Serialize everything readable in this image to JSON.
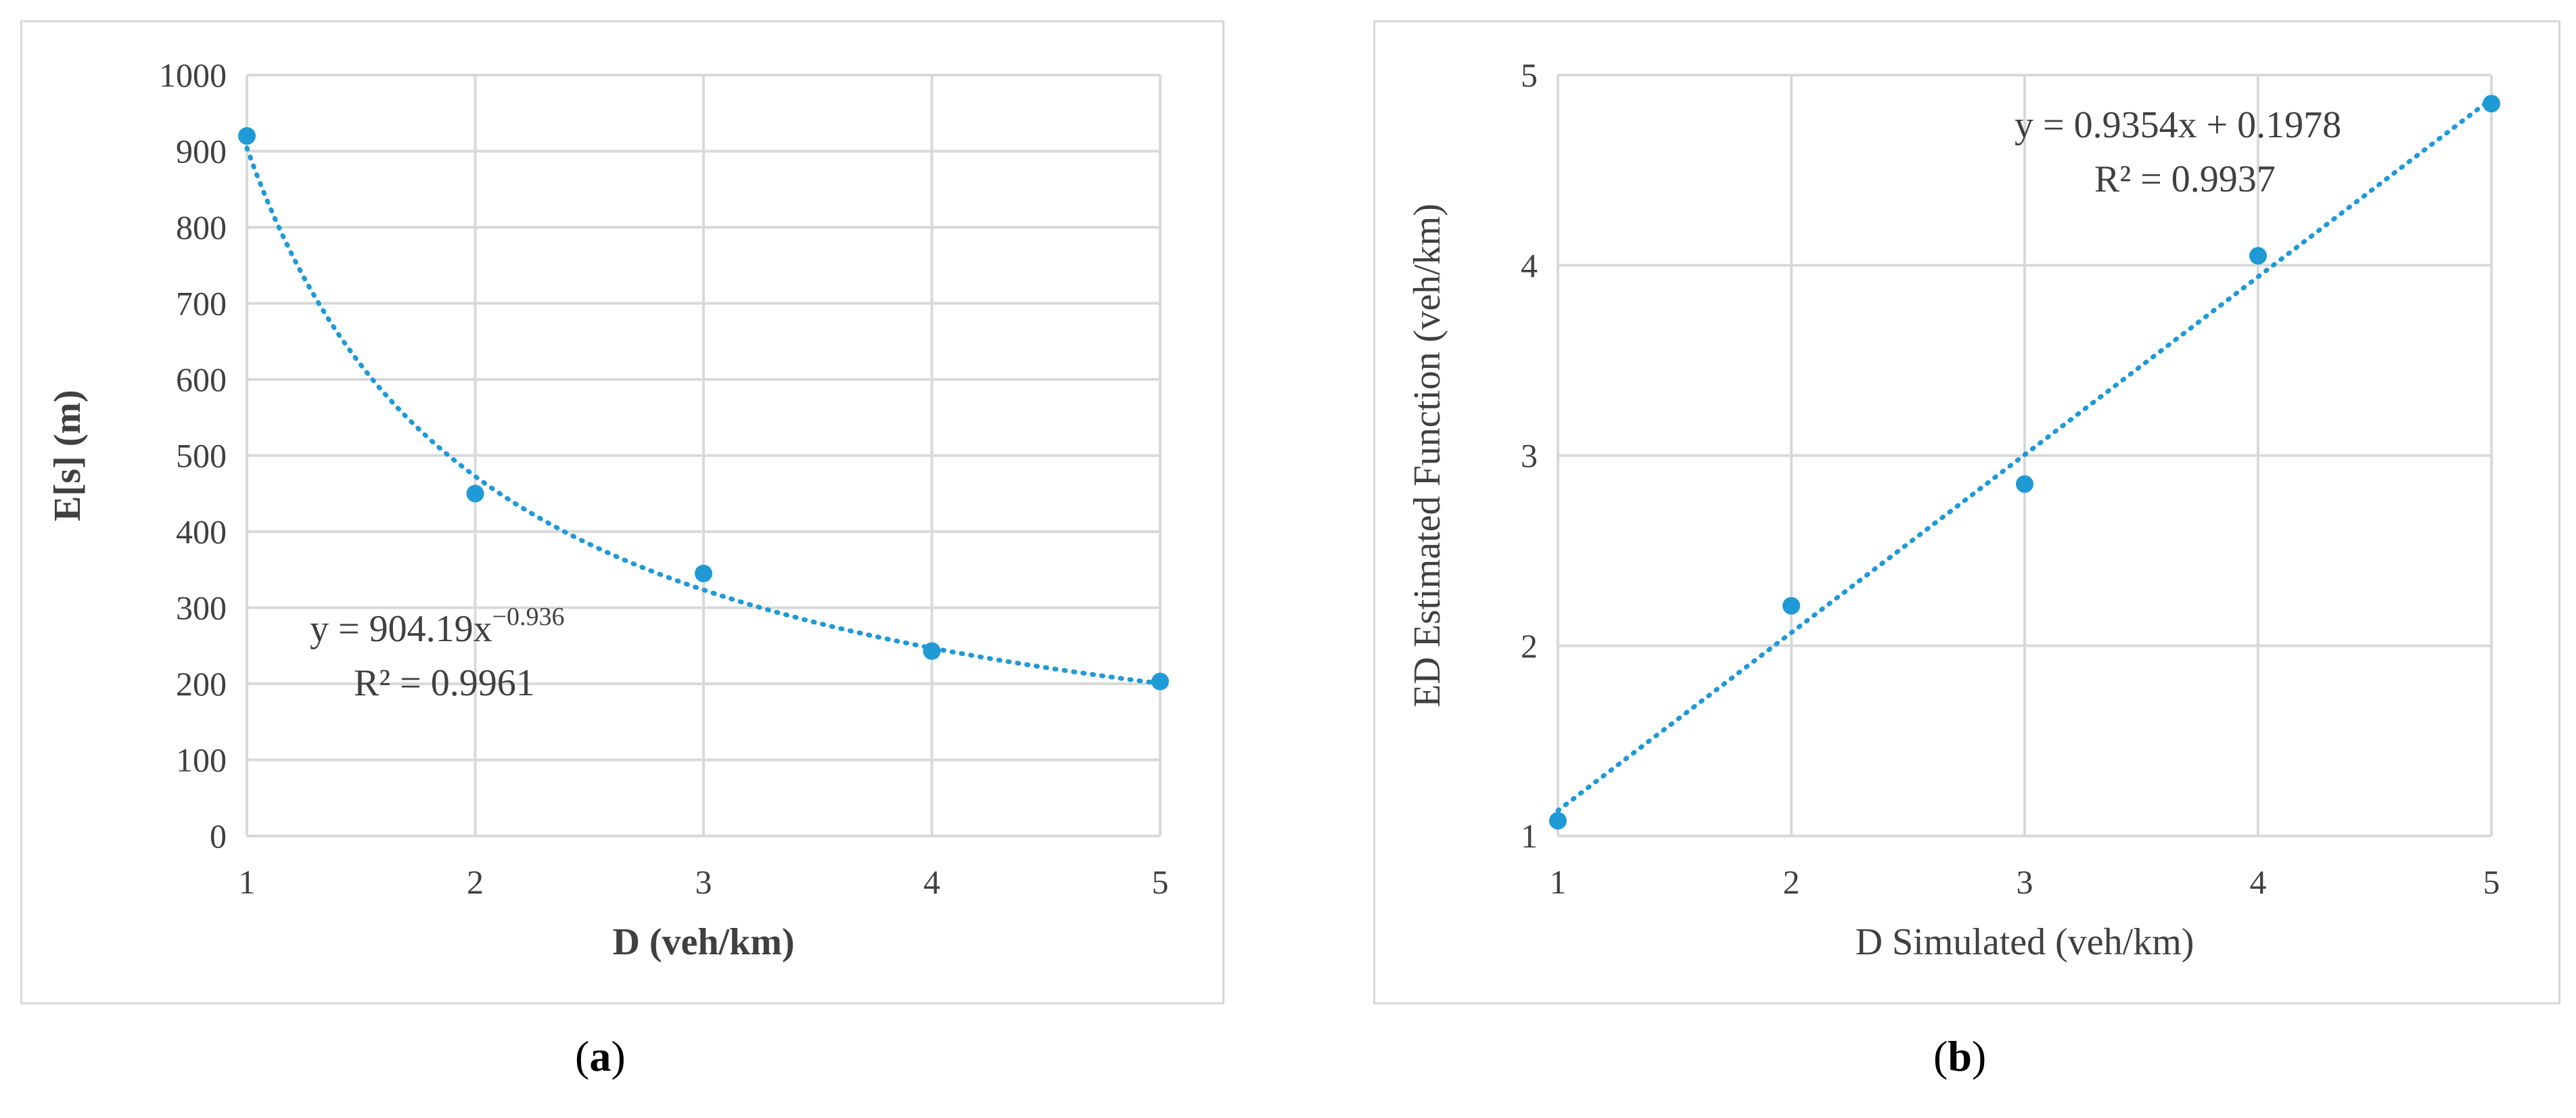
{
  "captions": {
    "a": {
      "open": "(",
      "letter": "a",
      "close": ")"
    },
    "b": {
      "open": "(",
      "letter": "b",
      "close": ")"
    }
  },
  "chart_data": [
    {
      "type": "scatter",
      "title": "",
      "xlabel": "D (veh/km)",
      "ylabel": "E[s] (m)",
      "xlim": [
        1,
        5
      ],
      "ylim": [
        0,
        1000
      ],
      "xticks": [
        1,
        2,
        3,
        4,
        5
      ],
      "yticks": [
        0,
        100,
        200,
        300,
        400,
        500,
        600,
        700,
        800,
        900,
        1000
      ],
      "grid": true,
      "points": [
        {
          "x": 1,
          "y": 920
        },
        {
          "x": 2,
          "y": 450
        },
        {
          "x": 3,
          "y": 345
        },
        {
          "x": 4,
          "y": 243
        },
        {
          "x": 5,
          "y": 203
        }
      ],
      "trendline": {
        "kind": "power",
        "a": 904.19,
        "b": -0.936,
        "style": "dotted"
      },
      "equation": {
        "base": "y = 904.19x",
        "exponent": "−0.936",
        "r2": "R² = 0.9961"
      },
      "color": "#1f9ad6"
    },
    {
      "type": "scatter",
      "title": "",
      "xlabel": "D Simulated (veh/km)",
      "ylabel": "ED Estimated Function (veh/km)",
      "xlim": [
        1,
        5
      ],
      "ylim": [
        1,
        5
      ],
      "xticks": [
        1,
        2,
        3,
        4,
        5
      ],
      "yticks": [
        1,
        2,
        3,
        4,
        5
      ],
      "grid": true,
      "points": [
        {
          "x": 1,
          "y": 1.08
        },
        {
          "x": 2,
          "y": 2.21
        },
        {
          "x": 3,
          "y": 2.85
        },
        {
          "x": 4,
          "y": 4.05
        },
        {
          "x": 5,
          "y": 4.85
        }
      ],
      "trendline": {
        "kind": "linear",
        "slope": 0.9354,
        "intercept": 0.1978,
        "style": "dotted"
      },
      "equation": {
        "base": "y = 0.9354x + 0.1978",
        "exponent": "",
        "r2": "R² = 0.9937"
      },
      "color": "#1f9ad6"
    }
  ]
}
